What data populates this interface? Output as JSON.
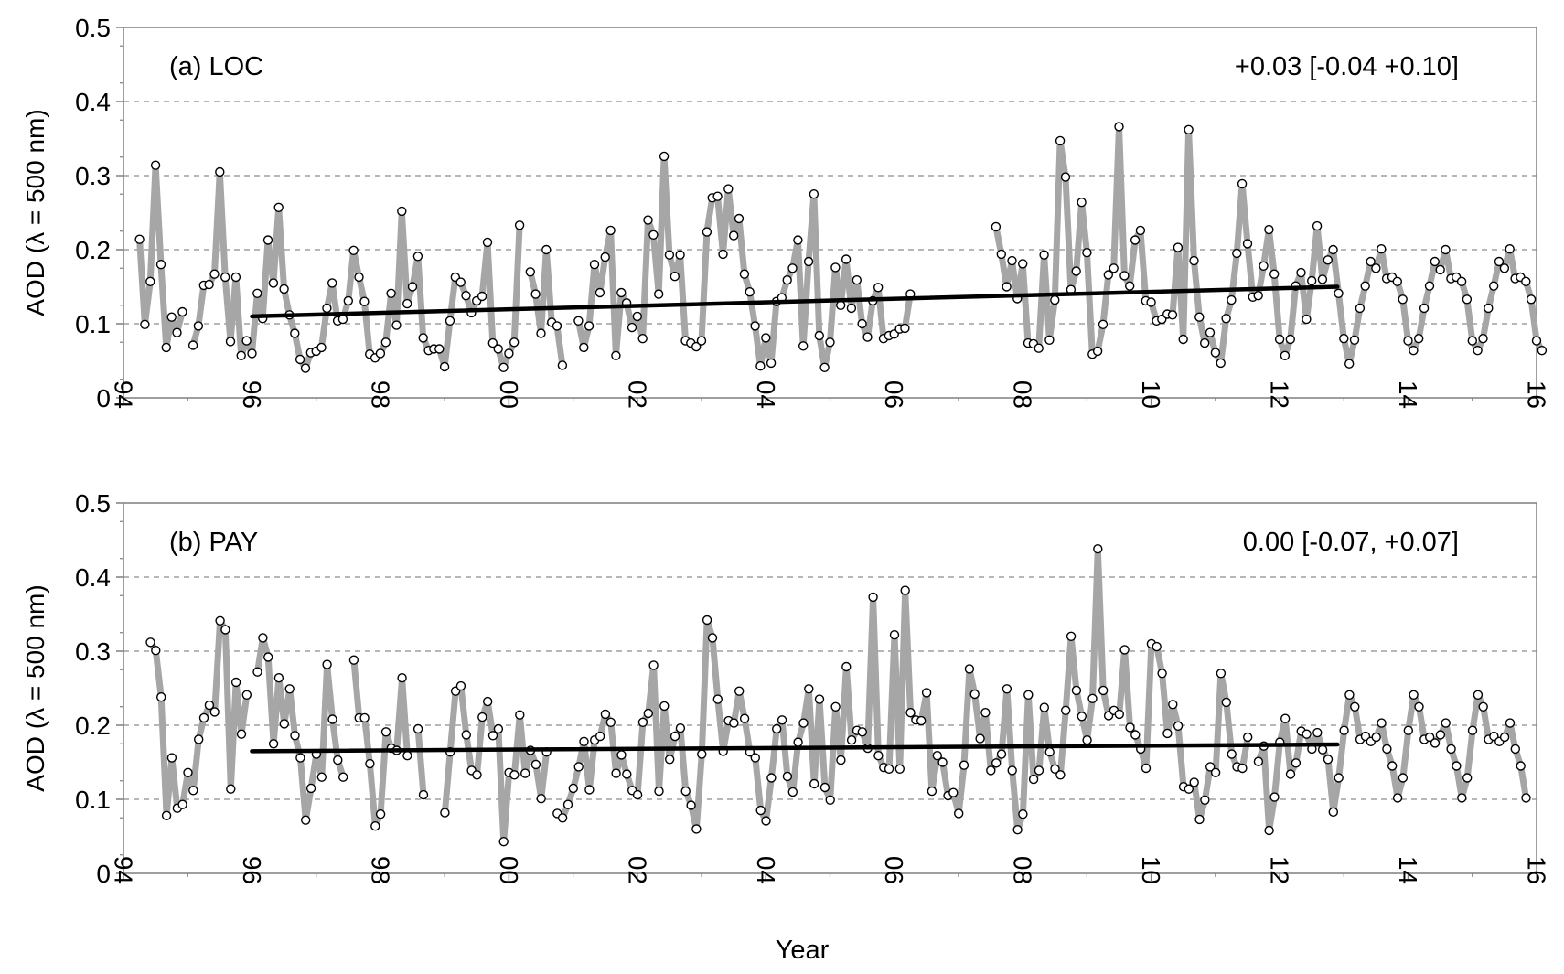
{
  "xlabel": "Year",
  "chart_data": [
    {
      "type": "line",
      "panel_label": "(a) LOC",
      "trend_annotation": "+0.03 [-0.04 +0.10]",
      "ylabel": "AOD (λ = 500 nm)",
      "xlim": [
        1994,
        2016
      ],
      "ylim": [
        0,
        0.5
      ],
      "x_tick_values": [
        1994,
        1996,
        1998,
        2000,
        2002,
        2004,
        2006,
        2008,
        2010,
        2012,
        2014,
        2016
      ],
      "x_tick_labels": [
        "94",
        "96",
        "98",
        "00",
        "02",
        "04",
        "06",
        "08",
        "10",
        "12",
        "14",
        "16"
      ],
      "y_ticks": [
        0,
        0.1,
        0.2,
        0.3,
        0.4,
        0.5
      ],
      "y_tick_labels": [
        "0",
        "0.1",
        "0.2",
        "0.3",
        "0.4",
        "0.5"
      ],
      "grid": "horizontal dashed",
      "series": [
        {
          "kind": "monthly",
          "color": "#a6a6a6",
          "marker": "open circle",
          "start_year": 1994.25,
          "step_years": 0.0833333,
          "values": [
            0.214,
            0.099,
            0.157,
            0.314,
            0.18,
            0.068,
            0.109,
            0.088,
            0.116,
            null,
            0.071,
            0.097,
            0.152,
            0.153,
            0.167,
            0.305,
            0.163,
            0.076,
            0.163,
            0.057,
            0.077,
            0.06,
            0.141,
            0.107,
            0.213,
            0.155,
            0.257,
            0.147,
            0.112,
            0.087,
            0.052,
            0.04,
            0.061,
            0.063,
            0.068,
            0.121,
            0.155,
            0.104,
            0.106,
            0.131,
            0.199,
            0.163,
            0.13,
            0.059,
            0.054,
            0.06,
            0.075,
            0.141,
            0.098,
            0.252,
            0.127,
            0.15,
            0.191,
            0.081,
            0.064,
            0.066,
            0.066,
            0.042,
            0.104,
            0.163,
            0.156,
            0.138,
            0.115,
            0.131,
            0.137,
            0.21,
            0.074,
            0.066,
            0.041,
            0.06,
            0.075,
            0.233,
            null,
            0.17,
            0.14,
            0.087,
            0.2,
            0.102,
            0.097,
            0.044,
            null,
            null,
            0.104,
            0.068,
            0.097,
            0.18,
            0.142,
            0.19,
            0.226,
            0.057,
            0.142,
            0.128,
            0.095,
            0.11,
            0.08,
            0.24,
            0.22,
            0.14,
            0.326,
            0.193,
            0.164,
            0.193,
            0.077,
            0.074,
            0.069,
            0.077,
            0.224,
            0.27,
            0.272,
            0.194,
            0.282,
            0.219,
            0.242,
            0.167,
            0.143,
            0.097,
            0.043,
            0.081,
            0.047,
            0.13,
            0.135,
            0.159,
            0.175,
            0.213,
            0.07,
            0.184,
            0.275,
            0.084,
            0.041,
            0.075,
            0.176,
            0.125,
            0.187,
            0.121,
            0.159,
            0.1,
            0.082,
            0.131,
            0.149,
            0.08,
            0.084,
            0.086,
            0.093,
            0.094,
            0.14,
            null,
            null,
            null,
            null,
            null,
            null,
            null,
            null,
            null,
            null,
            null,
            null,
            null,
            null,
            null,
            0.231,
            0.194,
            0.15,
            0.185,
            0.134,
            0.181,
            0.074,
            0.073,
            0.067,
            0.193,
            0.078,
            0.132,
            0.347,
            0.298,
            0.146,
            0.171,
            0.264,
            0.196,
            0.059,
            0.063,
            0.099,
            0.166,
            0.175,
            0.366,
            0.165,
            0.151,
            0.213,
            0.226,
            0.131,
            0.129,
            0.104,
            0.106,
            0.113,
            0.112,
            0.203,
            0.079,
            0.362,
            0.185,
            0.109,
            0.074,
            0.088,
            0.061,
            0.047,
            0.107,
            0.132,
            0.195,
            0.289,
            0.208,
            0.136,
            0.138,
            0.178,
            0.227,
            0.167,
            0.079,
            0.057,
            0.079,
            0.151,
            0.169,
            0.106,
            0.158,
            0.232,
            0.16,
            0.186,
            0.2,
            0.141,
            0.08,
            0.046,
            0.078,
            0.121,
            0.151,
            0.184,
            0.175,
            0.201,
            0.161,
            0.163,
            0.157,
            0.133,
            0.077,
            0.064,
            0.08,
            0.121,
            0.151,
            0.184,
            0.173,
            0.2,
            0.161,
            0.163,
            0.157,
            0.133,
            0.077,
            0.064,
            0.08,
            0.121,
            0.151,
            0.184,
            0.175,
            0.201,
            0.161,
            0.163,
            0.157,
            0.133,
            0.077,
            0.064
          ]
        },
        {
          "kind": "trend",
          "color": "#000000",
          "x": [
            1996.0,
            2012.9
          ],
          "y": [
            0.11,
            0.15
          ]
        }
      ]
    },
    {
      "type": "line",
      "panel_label": "(b) PAY",
      "trend_annotation": "0.00 [-0.07, +0.07]",
      "ylabel": "AOD (λ = 500 nm)",
      "xlim": [
        1994,
        2016
      ],
      "ylim": [
        0,
        0.5
      ],
      "x_tick_values": [
        1994,
        1996,
        1998,
        2000,
        2002,
        2004,
        2006,
        2008,
        2010,
        2012,
        2014,
        2016
      ],
      "x_tick_labels": [
        "94",
        "96",
        "98",
        "00",
        "02",
        "04",
        "06",
        "08",
        "10",
        "12",
        "14",
        "16"
      ],
      "y_ticks": [
        0,
        0.1,
        0.2,
        0.3,
        0.4,
        0.5
      ],
      "y_tick_labels": [
        "0",
        "0.1",
        "0.2",
        "0.3",
        "0.4",
        "0.5"
      ],
      "grid": "horizontal dashed",
      "series": [
        {
          "kind": "monthly",
          "color": "#a6a6a6",
          "marker": "open circle",
          "start_year": 1994.42,
          "step_years": 0.0833333,
          "values": [
            0.312,
            0.301,
            0.238,
            0.078,
            0.156,
            0.088,
            0.093,
            0.136,
            0.112,
            0.181,
            0.21,
            0.227,
            0.218,
            0.341,
            0.329,
            0.114,
            0.258,
            0.188,
            0.241,
            null,
            0.272,
            0.318,
            0.292,
            0.175,
            0.264,
            0.202,
            0.249,
            0.186,
            0.156,
            0.072,
            0.115,
            0.161,
            0.13,
            0.282,
            0.208,
            0.153,
            0.13,
            null,
            0.288,
            0.21,
            0.21,
            0.148,
            0.064,
            0.08,
            0.191,
            0.169,
            0.166,
            0.264,
            0.159,
            null,
            0.195,
            0.106,
            null,
            null,
            null,
            0.082,
            0.164,
            0.246,
            0.253,
            0.187,
            0.139,
            0.133,
            0.211,
            0.232,
            0.186,
            0.195,
            0.043,
            0.136,
            0.133,
            0.214,
            0.135,
            0.166,
            0.147,
            0.101,
            0.164,
            null,
            0.081,
            0.075,
            0.093,
            0.115,
            0.144,
            0.178,
            0.113,
            0.18,
            0.185,
            0.215,
            0.204,
            0.135,
            0.16,
            0.134,
            0.112,
            0.106,
            0.204,
            0.216,
            0.281,
            0.111,
            0.226,
            0.154,
            0.185,
            0.196,
            0.111,
            0.092,
            0.06,
            0.161,
            0.342,
            0.318,
            0.235,
            0.165,
            0.206,
            0.203,
            0.246,
            0.209,
            0.164,
            0.156,
            0.085,
            0.071,
            0.129,
            0.195,
            0.207,
            0.131,
            0.11,
            0.177,
            0.203,
            0.249,
            0.121,
            0.235,
            0.116,
            0.099,
            0.225,
            0.153,
            0.279,
            0.18,
            0.193,
            0.191,
            0.169,
            0.373,
            0.159,
            0.143,
            0.141,
            0.322,
            0.141,
            0.382,
            0.217,
            0.207,
            0.206,
            0.244,
            0.111,
            0.159,
            0.15,
            0.105,
            0.109,
            0.081,
            0.146,
            0.276,
            0.242,
            0.182,
            0.217,
            0.139,
            0.149,
            0.161,
            0.249,
            0.139,
            0.059,
            0.08,
            0.241,
            0.127,
            0.139,
            0.224,
            0.164,
            0.141,
            0.133,
            0.22,
            0.32,
            0.247,
            0.212,
            0.18,
            0.236,
            0.438,
            0.247,
            0.213,
            0.22,
            0.215,
            0.302,
            0.197,
            0.187,
            0.168,
            0.142,
            0.31,
            0.306,
            0.27,
            0.189,
            0.228,
            0.199,
            0.117,
            0.114,
            0.123,
            0.073,
            0.099,
            0.144,
            0.136,
            0.27,
            0.231,
            0.161,
            0.144,
            0.142,
            0.184,
            null,
            0.151,
            0.172,
            0.058,
            0.103,
            0.177,
            0.209,
            0.134,
            0.149,
            0.192,
            0.188,
            0.168,
            0.19,
            0.167,
            0.154,
            0.083,
            0.129,
            0.193,
            0.241,
            0.225,
            0.181,
            0.185,
            0.178,
            0.184,
            0.203,
            0.168,
            0.145,
            0.102,
            0.129,
            0.193,
            0.241,
            0.225,
            0.181,
            0.184,
            0.176,
            0.187,
            0.203,
            0.168,
            0.145,
            0.102,
            0.129,
            0.193,
            0.241,
            0.225,
            0.181,
            0.185,
            0.178,
            0.184,
            0.203,
            0.168,
            0.145,
            0.102
          ]
        },
        {
          "kind": "trend",
          "color": "#000000",
          "x": [
            1996.0,
            2012.9
          ],
          "y": [
            0.165,
            0.174
          ]
        }
      ]
    }
  ]
}
